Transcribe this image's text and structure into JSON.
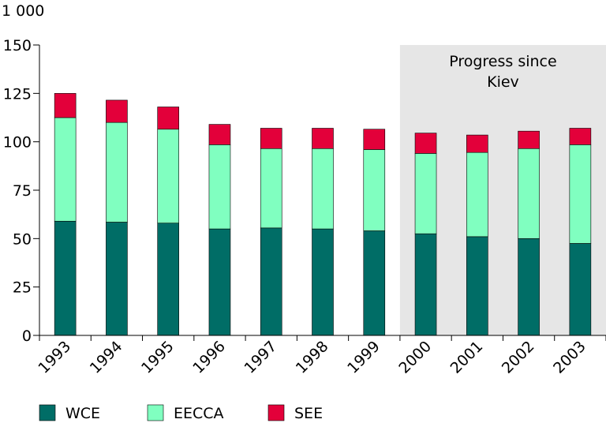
{
  "chart_data": {
    "type": "bar",
    "stacked": true,
    "unit_label": "1 000",
    "categories": [
      "1993",
      "1994",
      "1995",
      "1996",
      "1997",
      "1998",
      "1999",
      "2000",
      "2001",
      "2002",
      "2003"
    ],
    "series": [
      {
        "name": "WCE",
        "color": "#006d66",
        "values": [
          59,
          58.5,
          58,
          55,
          55.5,
          55,
          54,
          52.5,
          51,
          50,
          47.5
        ]
      },
      {
        "name": "EECCA",
        "color": "#80ffc0",
        "values": [
          53.5,
          51.5,
          48.5,
          43.5,
          41,
          41.5,
          42,
          41.5,
          43.5,
          46.5,
          51
        ]
      },
      {
        "name": "SEE",
        "color": "#e3003a",
        "values": [
          12.5,
          11.5,
          11.5,
          10.5,
          10.5,
          10.5,
          10.5,
          10.5,
          9,
          9,
          8.5
        ]
      }
    ],
    "ylim": [
      0,
      150
    ],
    "yticks": [
      0,
      25,
      50,
      75,
      100,
      125,
      150
    ],
    "highlight": {
      "from": "2000",
      "to": "2003",
      "label_lines": [
        "Progress since",
        "Kiev"
      ],
      "color": "#e6e6e6"
    },
    "legend_position": "bottom"
  }
}
